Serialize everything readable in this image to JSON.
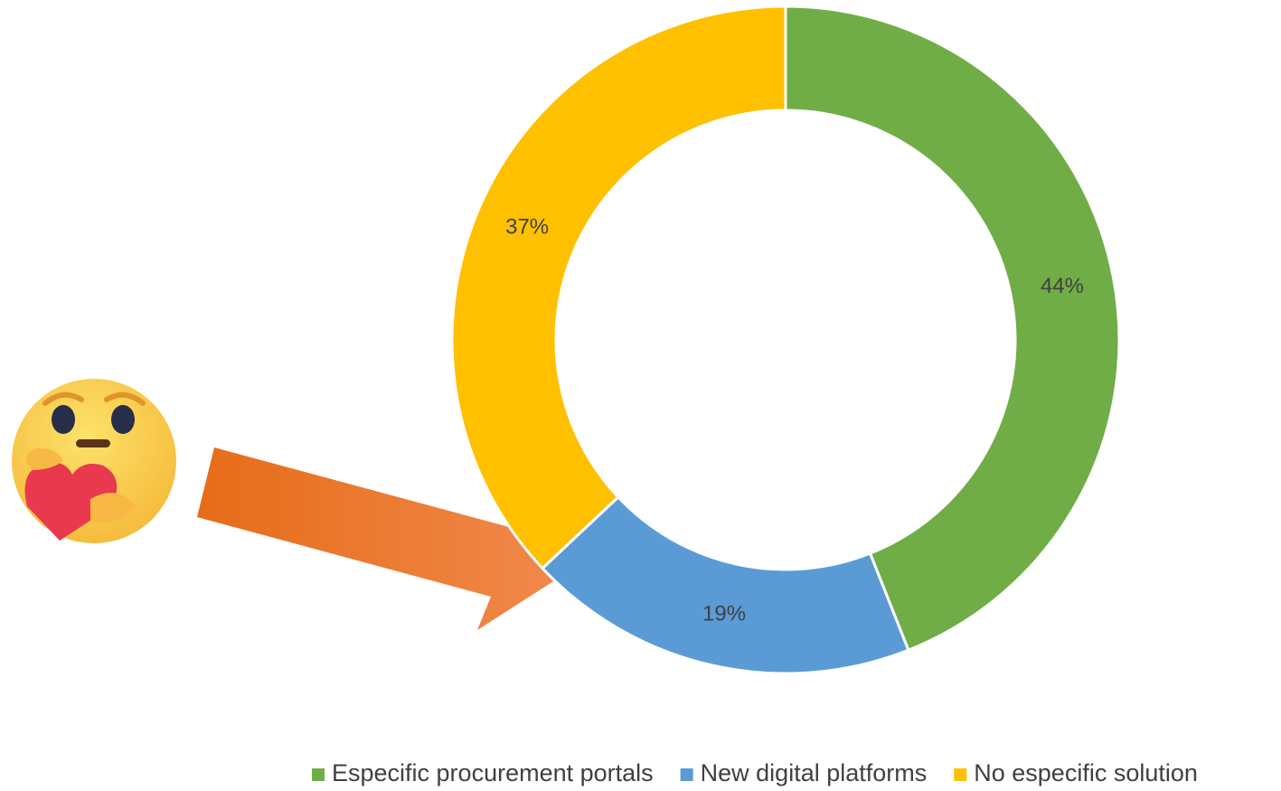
{
  "chart_data": {
    "type": "donut",
    "categories": [
      "Especific procurement portals",
      "New digital platforms",
      "No especific solution"
    ],
    "values": [
      44,
      19,
      37
    ],
    "value_labels": [
      "44%",
      "19%",
      "37%"
    ],
    "colors": [
      "#70ad47",
      "#5b9bd5",
      "#ffc000"
    ],
    "legend": "bottom"
  }
}
